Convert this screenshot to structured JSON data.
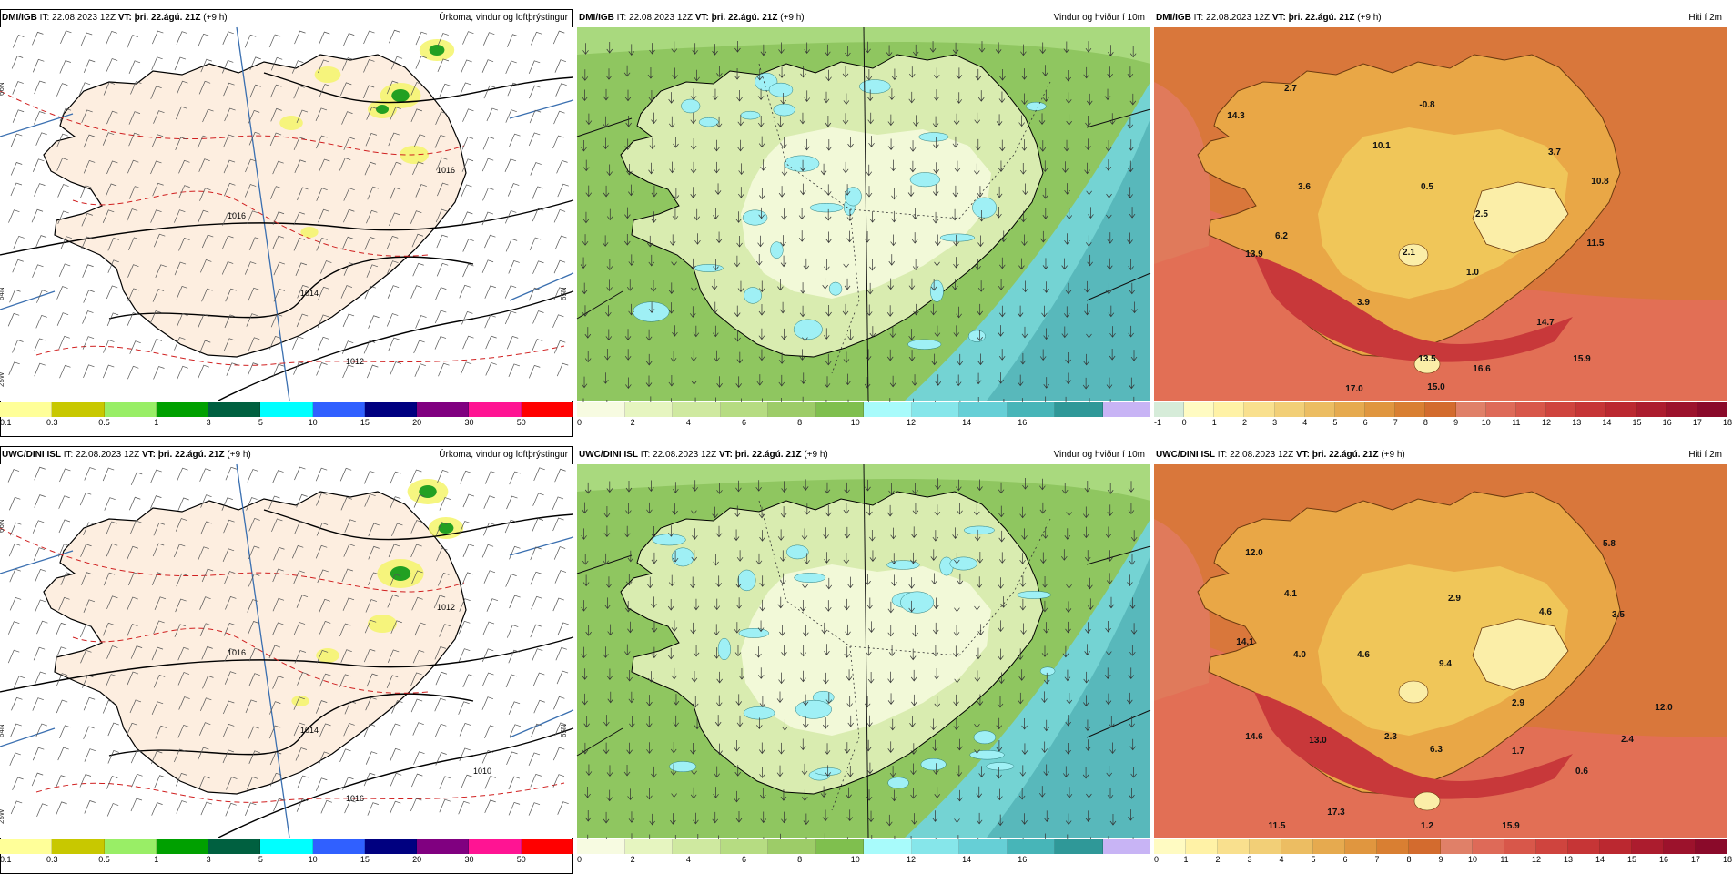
{
  "panels": [
    {
      "model": "DMI/IGB",
      "it_text": "IT: 22.08.2023 12Z",
      "vt_label": "VT:",
      "vt_value": "þri. 22.ágú. 21Z",
      "lead": "(+9 h)",
      "title": "Úrkoma, vindur og loftþrýstingur",
      "kind": "precip",
      "grid_labels": [
        "66N",
        "64N",
        "25W",
        "65N"
      ],
      "isobars": [
        "1016",
        "1014",
        "1012",
        "1016"
      ],
      "colorbar": {
        "colors": [
          "#ffff99",
          "#c8c800",
          "#99ee66",
          "#00a000",
          "#006040",
          "#00ffff",
          "#3060ff",
          "#000080",
          "#800080",
          "#ff1493",
          "#ff0000"
        ],
        "labels": [
          "0.1",
          "0.3",
          "0.5",
          "1",
          "3",
          "5",
          "10",
          "15",
          "20",
          "30",
          "50"
        ]
      },
      "labels": []
    },
    {
      "model": "DMI/IGB",
      "it_text": "IT: 22.08.2023 12Z",
      "vt_label": "VT:",
      "vt_value": "þri. 22.ágú. 21Z",
      "lead": "(+9 h)",
      "title": "Vindur og hviður í 10m",
      "kind": "wind",
      "colorbar": {
        "colors": [
          "#f7fbe1",
          "#e6f5c0",
          "#cfe9a0",
          "#b6dc82",
          "#9dcc68",
          "#7fbf4e",
          "#a8fbfb",
          "#86e6ea",
          "#66cfd6",
          "#47b5b8",
          "#2f9898",
          "#c8b4f5"
        ],
        "labels": [
          "0",
          "2",
          "4",
          "6",
          "8",
          "10",
          "12",
          "14",
          "16"
        ]
      },
      "labels": []
    },
    {
      "model": "DMI/IGB",
      "it_text": "IT: 22.08.2023 12Z",
      "vt_label": "VT:",
      "vt_value": "þri. 22.ágú. 21Z",
      "lead": "(+9 h)",
      "title": "Hiti í 2m",
      "kind": "temp",
      "colorbar": {
        "colors": [
          "#d6ecd9",
          "#fffbc2",
          "#fff2a6",
          "#f9e08e",
          "#f2cf77",
          "#ecbd62",
          "#e6aa4f",
          "#e0963f",
          "#d97f32",
          "#d36b2e",
          "#e08068",
          "#de6a58",
          "#d8574a",
          "#cf443e",
          "#c63536",
          "#bb2830",
          "#ac1c2e",
          "#9c122c",
          "#8a0a2a"
        ],
        "labels": [
          "-1",
          "0",
          "1",
          "2",
          "3",
          "4",
          "5",
          "6",
          "7",
          "8",
          "9",
          "10",
          "11",
          "12",
          "13",
          "14",
          "15",
          "16",
          "17",
          "18"
        ]
      },
      "labels": [
        "2.7",
        "14.3",
        "-0.8",
        "10.1",
        "3.7",
        "3.6",
        "0.5",
        "10.8",
        "6.2",
        "2.5",
        "13.9",
        "2.1",
        "11.5",
        "1.0",
        "3.9",
        "14.7",
        "15.9",
        "13.5",
        "16.6",
        "17.0",
        "15.0"
      ]
    },
    {
      "model": "UWC/DINI ISL",
      "it_text": "IT: 22.08.2023 12Z",
      "vt_label": "VT:",
      "vt_value": "þri. 22.ágú. 21Z",
      "lead": "(+9 h)",
      "title": "Úrkoma, vindur og loftþrýstingur",
      "kind": "precip",
      "grid_labels": [
        "66N",
        "64N",
        "25W",
        "65N"
      ],
      "isobars": [
        "1016",
        "1014",
        "1016",
        "1012",
        "1010"
      ],
      "colorbar": {
        "colors": [
          "#ffff99",
          "#c8c800",
          "#99ee66",
          "#00a000",
          "#006040",
          "#00ffff",
          "#3060ff",
          "#000080",
          "#800080",
          "#ff1493",
          "#ff0000"
        ],
        "labels": [
          "0.1",
          "0.3",
          "0.5",
          "1",
          "3",
          "5",
          "10",
          "15",
          "20",
          "30",
          "50"
        ]
      },
      "labels": []
    },
    {
      "model": "UWC/DINI ISL",
      "it_text": "IT: 22.08.2023 12Z",
      "vt_label": "VT:",
      "vt_value": "þri. 22.ágú. 21Z",
      "lead": "(+9 h)",
      "title": "Vindur og hviður í 10m",
      "kind": "wind",
      "colorbar": {
        "colors": [
          "#f7fbe1",
          "#e6f5c0",
          "#cfe9a0",
          "#b6dc82",
          "#9dcc68",
          "#7fbf4e",
          "#a8fbfb",
          "#86e6ea",
          "#66cfd6",
          "#47b5b8",
          "#2f9898",
          "#c8b4f5"
        ],
        "labels": [
          "0",
          "2",
          "4",
          "6",
          "8",
          "10",
          "12",
          "14",
          "16"
        ]
      },
      "labels": []
    },
    {
      "model": "UWC/DINI ISL",
      "it_text": "IT: 22.08.2023 12Z",
      "vt_label": "VT:",
      "vt_value": "þri. 22.ágú. 21Z",
      "lead": "(+9 h)",
      "title": "Hiti í 2m",
      "kind": "temp",
      "colorbar": {
        "colors": [
          "#fffbc2",
          "#fff2a6",
          "#f9e08e",
          "#f2cf77",
          "#ecbd62",
          "#e6aa4f",
          "#e0963f",
          "#d97f32",
          "#d36b2e",
          "#e08068",
          "#de6a58",
          "#d8574a",
          "#cf443e",
          "#c63536",
          "#bb2830",
          "#ac1c2e",
          "#9c122c",
          "#8a0a2a"
        ],
        "labels": [
          "0",
          "1",
          "2",
          "3",
          "4",
          "5",
          "6",
          "7",
          "8",
          "9",
          "10",
          "11",
          "12",
          "13",
          "14",
          "15",
          "16",
          "17",
          "18"
        ]
      },
      "labels": [
        "5.8",
        "12.0",
        "4.1",
        "2.9",
        "4.6",
        "3.5",
        "14.1",
        "4.0",
        "4.6",
        "9.4",
        "2.9",
        "12.0",
        "14.6",
        "13.0",
        "2.3",
        "6.3",
        "1.7",
        "2.4",
        "0.6",
        "17.3",
        "11.5",
        "15.9",
        "1.2"
      ]
    }
  ]
}
